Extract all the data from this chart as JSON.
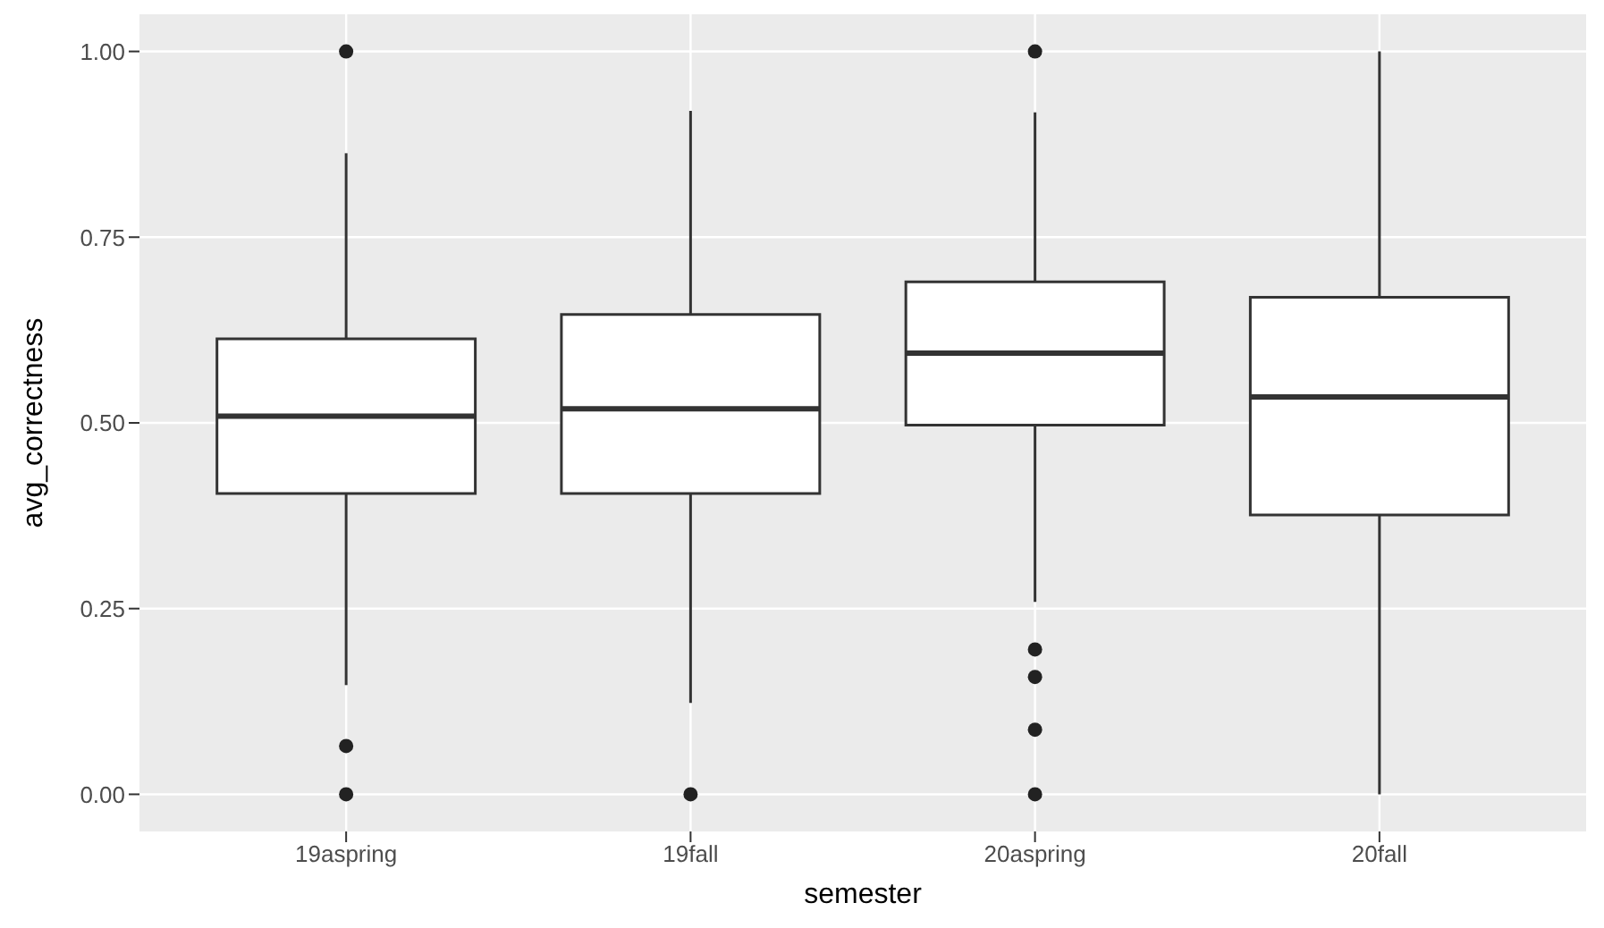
{
  "chart_data": {
    "type": "box",
    "xlabel": "semester",
    "ylabel": "avg_correctness",
    "categories": [
      "19aspring",
      "19fall",
      "20aspring",
      "20fall"
    ],
    "boxes": [
      {
        "low": 0.147,
        "q1": 0.405,
        "median": 0.509,
        "q3": 0.613,
        "high": 0.863,
        "outliers": [
          1.0,
          0.065,
          0.0
        ]
      },
      {
        "low": 0.123,
        "q1": 0.405,
        "median": 0.519,
        "q3": 0.646,
        "high": 0.92,
        "outliers": [
          0.0
        ]
      },
      {
        "low": 0.259,
        "q1": 0.497,
        "median": 0.594,
        "q3": 0.69,
        "high": 0.918,
        "outliers": [
          1.0,
          0.195,
          0.158,
          0.087,
          0.0
        ]
      },
      {
        "low": 0.0,
        "q1": 0.376,
        "median": 0.535,
        "q3": 0.669,
        "high": 1.0
      }
    ],
    "color": "#ffffff",
    "ylim": [
      -0.05,
      1.05
    ],
    "yticks": [
      {
        "value": 0,
        "label": "0.00"
      },
      {
        "value": 0.25,
        "label": "0.25"
      },
      {
        "value": 0.5,
        "label": "0.50"
      },
      {
        "value": 0.75,
        "label": "0.75"
      },
      {
        "value": 1,
        "label": "1.00"
      }
    ],
    "grid": true
  }
}
